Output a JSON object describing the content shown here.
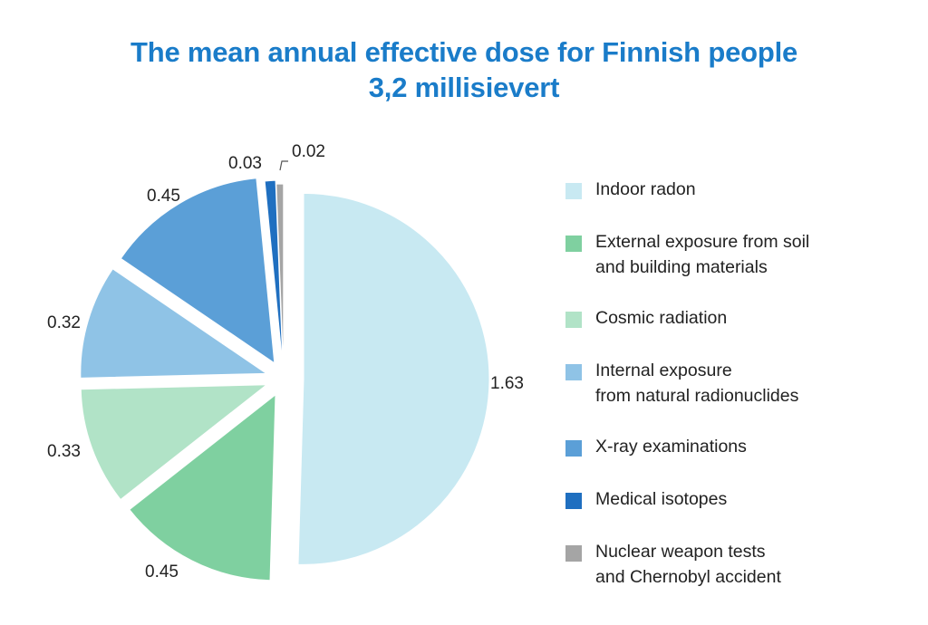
{
  "chart_data": {
    "type": "pie",
    "title": "The mean annual effective dose for Finnish people",
    "subtitle": "3,2 millisievert",
    "unit": "mSv",
    "slices": [
      {
        "name_lines": [
          "Indoor radon"
        ],
        "value": 1.63,
        "label": "1.63",
        "color": "#c8e9f2"
      },
      {
        "name_lines": [
          "External exposure from soil",
          "and building materials"
        ],
        "value": 0.45,
        "label": "0.45",
        "color": "#7fd0a0"
      },
      {
        "name_lines": [
          "Cosmic radiation"
        ],
        "value": 0.33,
        "label": "0.33",
        "color": "#b1e3c7"
      },
      {
        "name_lines": [
          "Internal exposure",
          "from natural radionuclides"
        ],
        "value": 0.32,
        "label": "0.32",
        "color": "#8fc3e6"
      },
      {
        "name_lines": [
          "X-ray examinations"
        ],
        "value": 0.45,
        "label": "0.45",
        "color": "#5b9fd7"
      },
      {
        "name_lines": [
          "Medical isotopes"
        ],
        "value": 0.03,
        "label": "0.03",
        "color": "#1f6fc0"
      },
      {
        "name_lines": [
          "Nuclear weapon tests",
          "and Chernobyl accident"
        ],
        "value": 0.02,
        "label": "0.02",
        "color": "#a5a5a5"
      }
    ],
    "legend_position": "right"
  }
}
